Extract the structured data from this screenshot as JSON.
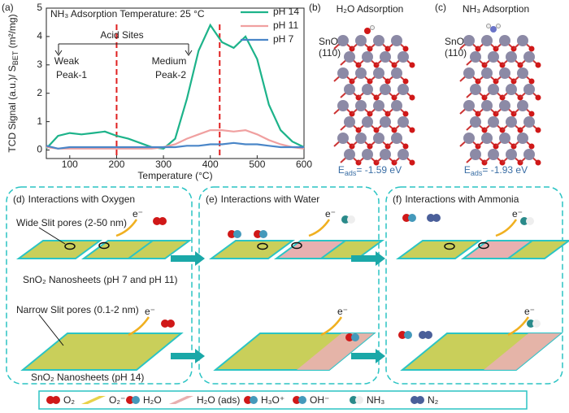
{
  "chart_data": {
    "type": "line",
    "panel_label": "(a)",
    "annotation": "NH₃ Adsorption Temperature: 25 °C",
    "x_label": "Temperature (°C)",
    "y_label": {
      "main": "TCD Signal (a.u.)/ S",
      "sub": "BET",
      "end": " (m²/mg)"
    },
    "x": [
      50,
      75,
      100,
      125,
      150,
      175,
      200,
      225,
      250,
      275,
      300,
      325,
      350,
      375,
      400,
      425,
      450,
      475,
      500,
      525,
      550,
      575,
      600
    ],
    "xlim": [
      50,
      600
    ],
    "xticks": [
      100,
      200,
      300,
      400,
      500,
      600
    ],
    "ylim": [
      -0.3,
      5
    ],
    "yticks": [
      0,
      1,
      2,
      3,
      4,
      5
    ],
    "series": [
      {
        "name": "pH 14",
        "color": "#1db38a",
        "values": [
          0.05,
          0.5,
          0.6,
          0.55,
          0.6,
          0.65,
          0.5,
          0.4,
          0.25,
          0.1,
          0.05,
          0.4,
          1.8,
          3.5,
          4.4,
          3.8,
          3.6,
          4.0,
          3.2,
          1.6,
          0.7,
          0.3,
          0.1
        ]
      },
      {
        "name": "pH 11",
        "color": "#f0a0a0",
        "values": [
          0.1,
          0.05,
          0.05,
          0.05,
          0.05,
          0.05,
          0.05,
          0.05,
          0.05,
          0.05,
          0.1,
          0.2,
          0.4,
          0.55,
          0.7,
          0.7,
          0.65,
          0.7,
          0.55,
          0.35,
          0.2,
          0.1,
          0.05
        ]
      },
      {
        "name": "pH 7",
        "color": "#4a86c8",
        "values": [
          0.15,
          0.05,
          0.1,
          0.1,
          0.1,
          0.1,
          0.1,
          0.1,
          0.1,
          0.1,
          0.1,
          0.1,
          0.15,
          0.15,
          0.2,
          0.2,
          0.25,
          0.2,
          0.2,
          0.15,
          0.1,
          0.1,
          0.1
        ]
      }
    ],
    "legend": "upper right",
    "region_lines": {
      "x": [
        200,
        420
      ],
      "color": "#e02020"
    },
    "region_labels": {
      "title": "Acid Sites",
      "weak": "Weak",
      "peak1": "Peak-1",
      "medium": "Medium",
      "peak2": "Peak-2"
    }
  },
  "panels": [
    {
      "label": "(b)",
      "title": "H₂O Adsorption",
      "surface": "SnO₂",
      "facet": "(110)",
      "energy": {
        "symbol": "E",
        "sub": "ads",
        "value": "= -1.59 eV"
      }
    },
    {
      "label": "(c)",
      "title": "NH₃ Adsorption",
      "surface": "SnO₂",
      "facet": "(110)",
      "energy": {
        "symbol": "E",
        "sub": "ads",
        "value": "= -1.93 eV"
      }
    }
  ],
  "schematics": [
    {
      "label": "(d)",
      "title": "Interactions with Oxygen",
      "electron": "e⁻",
      "wide_pores": "Wide Slit pores (2-50 nm)",
      "top_caption": "SnO₂  Nanosheets (pH 7 and pH 11)",
      "narrow_pores": "Narrow Slit pores (0.1-2 nm)",
      "bottom_caption": "SnO₂  Nanosheets (pH 14)"
    },
    {
      "label": "(e)",
      "title": "Interactions with Water",
      "electron": "e⁻"
    },
    {
      "label": "(f)",
      "title": "Interactions with Ammonia",
      "electron": "e⁻"
    }
  ],
  "key": [
    "O₂",
    "O₂⁻",
    "H₂O",
    "H₂O (ads)",
    "H₃O⁺",
    "OH⁻",
    "NH₃",
    "N₂"
  ]
}
